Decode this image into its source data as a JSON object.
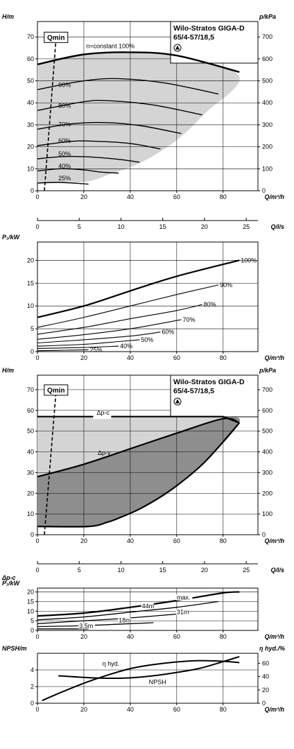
{
  "chart_data": [
    {
      "type": "line",
      "title": "Wilo-Stratos GIGA-D",
      "subtitle": "65/4-57/18,5",
      "ylabel": "H/m",
      "y2label": "p/kPa",
      "xlabel": "Q/m³/h",
      "xlim": [
        0,
        95
      ],
      "ylim": [
        0,
        77
      ],
      "y2lim": [
        0,
        770
      ],
      "x_ticks": [
        "0",
        "20",
        "40",
        "60",
        "80"
      ],
      "y_ticks": [
        "0",
        "10",
        "20",
        "30",
        "40",
        "50",
        "60",
        "70"
      ],
      "y2_ticks": [
        "0",
        "100",
        "200",
        "300",
        "400",
        "500",
        "600",
        "700"
      ],
      "grid": true,
      "annotations": [
        "n=constant 100%",
        "Qmin"
      ],
      "qmin_line": {
        "label": "Qmin",
        "points": [
          [
            3,
            0
          ],
          [
            8,
            69
          ]
        ]
      },
      "envelope": {
        "points": [
          [
            0,
            57.5
          ],
          [
            20,
            62
          ],
          [
            40,
            63
          ],
          [
            60,
            61.5
          ],
          [
            87,
            52
          ],
          [
            72,
            35
          ],
          [
            60,
            23
          ],
          [
            45,
            13
          ],
          [
            30,
            7
          ],
          [
            20,
            4
          ],
          [
            0,
            3.5
          ]
        ]
      },
      "series": [
        {
          "name": "n=constant 100%",
          "points": [
            [
              0,
              57.5
            ],
            [
              20,
              62
            ],
            [
              40,
              63
            ],
            [
              60,
              61.5
            ],
            [
              87,
              54
            ]
          ]
        },
        {
          "name": "90%",
          "points": [
            [
              0,
              46
            ],
            [
              20,
              50
            ],
            [
              35,
              51
            ],
            [
              55,
              49
            ],
            [
              78,
              44
            ]
          ]
        },
        {
          "name": "80%",
          "points": [
            [
              0,
              36.5
            ],
            [
              20,
              40.5
            ],
            [
              30,
              41
            ],
            [
              50,
              39
            ],
            [
              71,
              34.5
            ]
          ]
        },
        {
          "name": "70%",
          "points": [
            [
              0,
              28
            ],
            [
              15,
              30.5
            ],
            [
              30,
              31
            ],
            [
              45,
              29.5
            ],
            [
              62,
              26
            ]
          ]
        },
        {
          "name": "60%",
          "points": [
            [
              0,
              20.5
            ],
            [
              15,
              22.5
            ],
            [
              25,
              22.5
            ],
            [
              40,
              21.5
            ],
            [
              53,
              19
            ]
          ]
        },
        {
          "name": "50%",
          "points": [
            [
              0,
              14.5
            ],
            [
              10,
              15.5
            ],
            [
              20,
              15.5
            ],
            [
              33,
              14.5
            ],
            [
              44,
              13
            ]
          ]
        },
        {
          "name": "40%",
          "points": [
            [
              0,
              9
            ],
            [
              10,
              10
            ],
            [
              20,
              9.5
            ],
            [
              27,
              8.5
            ],
            [
              35,
              8
            ]
          ]
        },
        {
          "name": "25%",
          "points": [
            [
              0,
              3.5
            ],
            [
              8,
              3.8
            ],
            [
              15,
              3.5
            ],
            [
              22,
              3
            ]
          ]
        }
      ]
    },
    {
      "type": "line",
      "title": "",
      "xlabel": "Q/l/s",
      "xlim": [
        0,
        26.4
      ],
      "x_ticks": [
        "0",
        "5",
        "10",
        "15",
        "20",
        "25"
      ]
    },
    {
      "type": "line",
      "title": "",
      "ylabel": "P₁/kW",
      "xlabel": "Q/m³/h",
      "xlim": [
        0,
        95
      ],
      "ylim": [
        0,
        24
      ],
      "x_ticks": [
        "0",
        "20",
        "40",
        "60",
        "80"
      ],
      "y_ticks": [
        "0",
        "5",
        "10",
        "15",
        "20"
      ],
      "grid": true,
      "series": [
        {
          "name": "100%",
          "points": [
            [
              0,
              7.5
            ],
            [
              20,
              10
            ],
            [
              40,
              13.3
            ],
            [
              60,
              16.5
            ],
            [
              87,
              20
            ]
          ]
        },
        {
          "name": "90%",
          "points": [
            [
              0,
              5.3
            ],
            [
              20,
              7.5
            ],
            [
              40,
              10
            ],
            [
              60,
              12.5
            ],
            [
              78,
              14.6
            ]
          ]
        },
        {
          "name": "80%",
          "points": [
            [
              0,
              3.8
            ],
            [
              20,
              5.3
            ],
            [
              40,
              7.2
            ],
            [
              60,
              9
            ],
            [
              71,
              10.3
            ]
          ]
        },
        {
          "name": "70%",
          "points": [
            [
              0,
              2.7
            ],
            [
              20,
              3.7
            ],
            [
              40,
              5
            ],
            [
              62,
              7
            ]
          ]
        },
        {
          "name": "60%",
          "points": [
            [
              0,
              1.9
            ],
            [
              20,
              2.6
            ],
            [
              40,
              3.4
            ],
            [
              53,
              4.3
            ]
          ]
        },
        {
          "name": "50%",
          "points": [
            [
              0,
              1.2
            ],
            [
              20,
              1.6
            ],
            [
              35,
              2.2
            ],
            [
              44,
              2.6
            ]
          ]
        },
        {
          "name": "40%",
          "points": [
            [
              0,
              0.7
            ],
            [
              20,
              0.9
            ],
            [
              35,
              1.2
            ]
          ]
        },
        {
          "name": "25%",
          "points": [
            [
              0,
              0.2
            ],
            [
              12,
              0.3
            ],
            [
              22,
              0.4
            ]
          ]
        }
      ]
    },
    {
      "type": "area",
      "title": "Wilo-Stratos GIGA-D",
      "subtitle": "65/4-57/18,5",
      "ylabel": "H/m",
      "y2label": "p/kPa",
      "xlabel": "Q/m³/h",
      "xlim": [
        0,
        95
      ],
      "ylim": [
        0,
        77
      ],
      "y2lim": [
        0,
        770
      ],
      "x_ticks": [
        "0",
        "20",
        "40",
        "60",
        "80"
      ],
      "y_ticks": [
        "0",
        "10",
        "20",
        "30",
        "40",
        "50",
        "60",
        "70"
      ],
      "y2_ticks": [
        "0",
        "100",
        "200",
        "300",
        "400",
        "500",
        "600",
        "700"
      ],
      "grid": true,
      "annotations": [
        "Δp-c",
        "Δp-v",
        "Qmin"
      ],
      "qmin_line": {
        "label": "Qmin",
        "points": [
          [
            3,
            0
          ],
          [
            8,
            69
          ]
        ]
      },
      "light_region": {
        "points": [
          [
            0,
            57
          ],
          [
            80,
            57
          ],
          [
            87,
            54
          ],
          [
            0,
            28
          ]
        ]
      },
      "dark_region": {
        "points": [
          [
            0,
            28
          ],
          [
            20,
            34
          ],
          [
            40,
            41.5
          ],
          [
            60,
            49
          ],
          [
            80,
            56
          ],
          [
            87,
            54
          ],
          [
            72,
            35
          ],
          [
            58,
            22
          ],
          [
            45,
            13
          ],
          [
            35,
            8
          ],
          [
            30,
            6
          ],
          [
            22,
            4
          ],
          [
            0,
            4
          ]
        ]
      },
      "series": [
        {
          "name": "Δp-c",
          "points": [
            [
              0,
              57
            ],
            [
              80,
              57
            ],
            [
              87,
              54
            ]
          ]
        },
        {
          "name": "Δp-v",
          "points": [
            [
              0,
              28
            ],
            [
              20,
              34
            ],
            [
              40,
              41.5
            ],
            [
              60,
              49
            ],
            [
              80,
              56
            ],
            [
              87,
              54
            ]
          ]
        },
        {
          "name": "min",
          "points": [
            [
              0,
              4
            ],
            [
              22,
              4
            ],
            [
              30,
              6
            ],
            [
              35,
              8
            ],
            [
              45,
              13
            ],
            [
              58,
              22
            ],
            [
              72,
              35
            ],
            [
              87,
              54
            ]
          ]
        }
      ]
    },
    {
      "type": "line",
      "title": "",
      "xlabel": "Q/l/s",
      "xlim": [
        0,
        26.4
      ],
      "x_ticks": [
        "0",
        "5",
        "10",
        "15",
        "20",
        "25"
      ]
    },
    {
      "type": "line",
      "title": "",
      "ylabel": "P₁/kW",
      "ylabel_top": "Δp-c",
      "xlabel": "Q/m³/h",
      "xlim": [
        0,
        95
      ],
      "ylim": [
        0,
        22
      ],
      "x_ticks": [
        "0",
        "20",
        "40",
        "60",
        "80"
      ],
      "y_ticks": [
        "0",
        "5",
        "10",
        "15",
        "20"
      ],
      "grid": true,
      "series": [
        {
          "name": "max.",
          "points": [
            [
              0,
              7.5
            ],
            [
              20,
              9
            ],
            [
              40,
              12
            ],
            [
              60,
              15.5
            ],
            [
              80,
              19.5
            ],
            [
              87,
              20
            ]
          ]
        },
        {
          "name": "44m",
          "points": [
            [
              0,
              5.5
            ],
            [
              20,
              7
            ],
            [
              40,
              9.5
            ],
            [
              60,
              12
            ],
            [
              78,
              15
            ]
          ]
        },
        {
          "name": "31m",
          "points": [
            [
              0,
              3.5
            ],
            [
              20,
              5
            ],
            [
              40,
              6.5
            ],
            [
              65,
              9
            ]
          ]
        },
        {
          "name": "18m",
          "points": [
            [
              0,
              2
            ],
            [
              20,
              2.5
            ],
            [
              40,
              3.5
            ],
            [
              50,
              4
            ]
          ]
        },
        {
          "name": "3.5m",
          "points": [
            [
              0,
              0.8
            ],
            [
              10,
              0.8
            ],
            [
              22,
              0.8
            ]
          ]
        }
      ]
    },
    {
      "type": "line",
      "title": "",
      "ylabel": "NPSH/m",
      "y2label": "η hyd./%",
      "xlabel": "Q/m³/h",
      "xlim": [
        0,
        95
      ],
      "ylim": [
        0,
        6
      ],
      "y2lim": [
        0,
        75
      ],
      "x_ticks": [
        "0",
        "20",
        "40",
        "60",
        "80"
      ],
      "y_ticks": [
        "0",
        "2",
        "4"
      ],
      "y2_ticks": [
        "0",
        "20",
        "40",
        "60"
      ],
      "grid": true,
      "series": [
        {
          "name": "η hyd.",
          "axis": "right",
          "points": [
            [
              2,
              4
            ],
            [
              10,
              16
            ],
            [
              20,
              30
            ],
            [
              30,
              42
            ],
            [
              40,
              52
            ],
            [
              50,
              58
            ],
            [
              60,
              62
            ],
            [
              70,
              64
            ],
            [
              80,
              63
            ],
            [
              87,
              61
            ]
          ]
        },
        {
          "name": "NPSH",
          "axis": "left",
          "points": [
            [
              9,
              3.3
            ],
            [
              20,
              3.1
            ],
            [
              30,
              3.0
            ],
            [
              40,
              3.05
            ],
            [
              50,
              3.3
            ],
            [
              60,
              3.7
            ],
            [
              70,
              4.2
            ],
            [
              80,
              5.0
            ],
            [
              87,
              5.6
            ]
          ]
        }
      ]
    }
  ]
}
